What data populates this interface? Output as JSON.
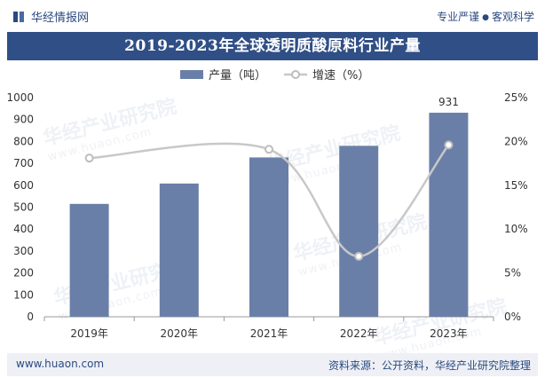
{
  "header": {
    "brand": "华经情报网",
    "slogan_left": "专业严谨",
    "slogan_right": "客观科学"
  },
  "title": "2019-2023年全球透明质酸原料行业产量",
  "footer": {
    "url": "www.huaon.com",
    "source": "资料来源：公开资料，华经产业研究院整理"
  },
  "watermark": {
    "text": "华经产业研究院",
    "url": "www.huaon.com"
  },
  "chart_data": {
    "type": "bar+line",
    "categories": [
      "2019年",
      "2020年",
      "2021年",
      "2022年",
      "2023年"
    ],
    "series": [
      {
        "name": "产量（吨）",
        "type": "bar",
        "axis": "left",
        "values": [
          515,
          608,
          727,
          780,
          931
        ],
        "color": "#6a7fa8"
      },
      {
        "name": "增速（%）",
        "type": "line",
        "axis": "right",
        "values": [
          18.1,
          null,
          19.1,
          6.9,
          19.6
        ],
        "color": "#c8c8c8"
      }
    ],
    "data_labels": [
      {
        "series": 0,
        "index": 4,
        "text": "931"
      }
    ],
    "yleft": {
      "min": 0,
      "max": 1000,
      "step": 100,
      "ticks": [
        "0",
        "100",
        "200",
        "300",
        "400",
        "500",
        "600",
        "700",
        "800",
        "900",
        "1000"
      ]
    },
    "yright": {
      "min": 0,
      "max": 25,
      "step": 5,
      "ticks": [
        "0%",
        "5%",
        "10%",
        "15%",
        "20%",
        "25%"
      ]
    },
    "legend": "top-center",
    "grid": false
  }
}
